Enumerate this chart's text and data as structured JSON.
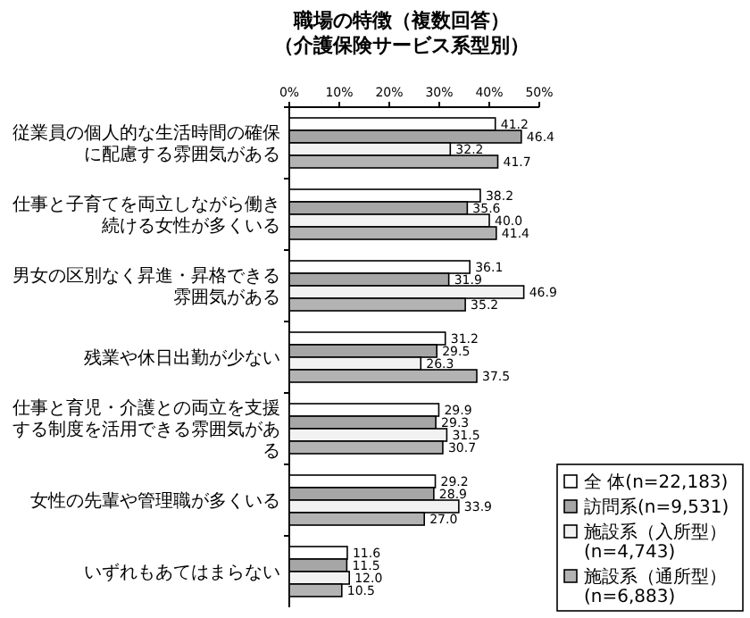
{
  "chart_data": {
    "type": "bar",
    "orientation": "horizontal",
    "title": "職場の特徴（複数回答）",
    "subtitle": "（介護保険サービス系型別）",
    "categories": [
      "従業員の個人的な生活時間の確保に配慮する雰囲気がある",
      "仕事と子育てを両立しながら働き続ける女性が多くいる",
      "男女の区別なく昇進・昇格できる雰囲気がある",
      "残業や休日出勤が少ない",
      "仕事と育児・介護との両立を支援する制度を活用できる雰囲気がある",
      "女性の先輩や管理職が多くいる",
      "いずれもあてはまらない"
    ],
    "series": [
      {
        "name": "全 体(n=22,183)",
        "color": "#ffffff",
        "values": [
          41.2,
          38.2,
          36.1,
          31.2,
          29.9,
          29.2,
          11.6
        ],
        "value_labels": [
          "41.2",
          "38.2",
          "36.1",
          "31.2",
          "29.9",
          "29.2",
          "11.6"
        ]
      },
      {
        "name": "訪問系(n=9,531)",
        "color": "#a6a6a6",
        "values": [
          46.4,
          35.6,
          31.9,
          29.5,
          29.3,
          28.9,
          11.5
        ],
        "value_labels": [
          "46.4",
          "35.6",
          "31.9",
          "29.5",
          "29.3",
          "28.9",
          "11.5"
        ]
      },
      {
        "name": "施設系（入所型）(n=4,743)",
        "color": "#f2f2f2",
        "values": [
          32.2,
          40.0,
          46.9,
          26.3,
          31.5,
          33.9,
          12.0
        ],
        "value_labels": [
          "32.2",
          "40.0",
          "46.9",
          "26.3",
          "31.5",
          "33.9",
          "12.0"
        ]
      },
      {
        "name": "施設系（通所型）(n=6,883)",
        "color": "#b3b3b3",
        "values": [
          41.7,
          41.4,
          35.2,
          37.5,
          30.7,
          27.0,
          10.5
        ],
        "value_labels": [
          "41.7",
          "41.4",
          "35.2",
          "37.5",
          "30.7",
          "27.0",
          "10.5"
        ]
      }
    ],
    "xlim": [
      0,
      50
    ],
    "xticks": [
      {
        "value": 0,
        "label": "0%"
      },
      {
        "value": 10,
        "label": "10%"
      },
      {
        "value": 20,
        "label": "20%"
      },
      {
        "value": 30,
        "label": "30%"
      },
      {
        "value": 40,
        "label": "40%"
      },
      {
        "value": 50,
        "label": "50%"
      }
    ],
    "legend": "bottom right",
    "grid": false
  }
}
